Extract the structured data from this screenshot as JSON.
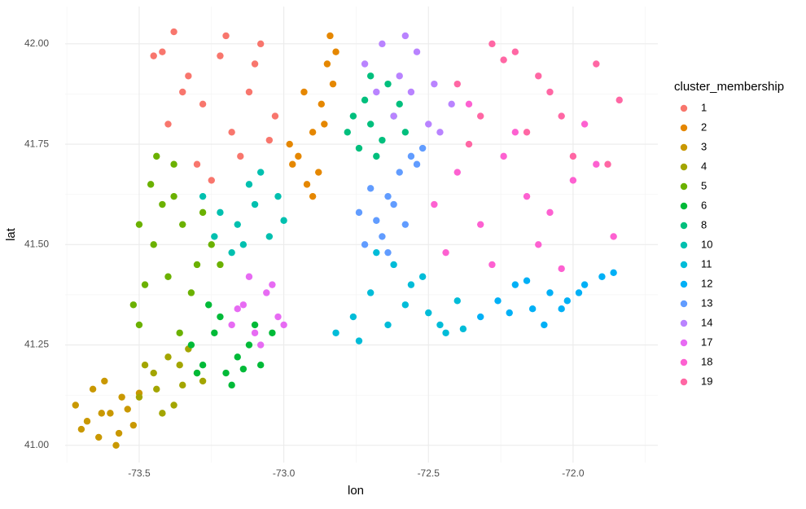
{
  "chart_data": {
    "type": "scatter",
    "xlabel": "lon",
    "ylabel": "lat",
    "legend_title": "cluster_membership",
    "legend_position": "right",
    "grid": true,
    "xlim": [
      -73.756,
      -71.707
    ],
    "ylim": [
      40.957,
      42.093
    ],
    "xticks": [
      -73.5,
      {
        "value": -73.0,
        "label": "-73.0"
      },
      -72.5,
      {
        "value": -72.0,
        "label": "-72.0"
      }
    ],
    "yticks": [
      {
        "value": 41.0,
        "label": "41.00"
      },
      41.25,
      {
        "value": 41.5,
        "label": "41.50"
      },
      41.75,
      {
        "value": 42.0,
        "label": "42.00"
      }
    ],
    "series": [
      {
        "name": "1",
        "color": "#F8766D",
        "x": [
          -73.42,
          -73.38,
          -73.33,
          -73.28,
          -73.22,
          -73.18,
          -73.12,
          -73.08,
          -73.03,
          -73.4,
          -73.3,
          -73.25,
          -73.15,
          -73.35,
          -73.1,
          -73.2,
          -73.45,
          -73.05
        ],
        "y": [
          41.98,
          42.03,
          41.92,
          41.85,
          41.97,
          41.78,
          41.88,
          42.0,
          41.82,
          41.8,
          41.7,
          41.66,
          41.72,
          41.88,
          41.95,
          42.02,
          41.97,
          41.76
        ]
      },
      {
        "name": "2",
        "color": "#E58700",
        "x": [
          -72.95,
          -72.9,
          -72.87,
          -72.83,
          -72.85,
          -72.92,
          -72.98,
          -72.88,
          -72.82,
          -72.93,
          -72.86,
          -72.9,
          -72.97,
          -72.84
        ],
        "y": [
          41.72,
          41.78,
          41.85,
          41.9,
          41.95,
          41.65,
          41.75,
          41.68,
          41.98,
          41.88,
          41.8,
          41.62,
          41.7,
          42.02
        ]
      },
      {
        "name": "3",
        "color": "#C99800",
        "x": [
          -73.72,
          -73.68,
          -73.64,
          -73.6,
          -73.56,
          -73.52,
          -73.66,
          -73.58,
          -73.62,
          -73.54,
          -73.7,
          -73.5,
          -73.63,
          -73.57
        ],
        "y": [
          41.1,
          41.06,
          41.02,
          41.08,
          41.12,
          41.05,
          41.14,
          41.0,
          41.16,
          41.09,
          41.04,
          41.13,
          41.08,
          41.03
        ]
      },
      {
        "name": "4",
        "color": "#A3A500",
        "x": [
          -73.5,
          -73.45,
          -73.4,
          -73.35,
          -73.3,
          -73.42,
          -73.48,
          -73.38,
          -73.33,
          -73.28,
          -73.44,
          -73.36
        ],
        "y": [
          41.12,
          41.18,
          41.22,
          41.15,
          41.18,
          41.08,
          41.2,
          41.1,
          41.24,
          41.16,
          41.14,
          41.2
        ]
      },
      {
        "name": "5",
        "color": "#6BB100",
        "x": [
          -73.5,
          -73.48,
          -73.45,
          -73.42,
          -73.38,
          -73.35,
          -73.3,
          -73.25,
          -73.52,
          -73.46,
          -73.4,
          -73.32,
          -73.28,
          -73.36,
          -73.44,
          -73.5,
          -73.22,
          -73.38
        ],
        "y": [
          41.3,
          41.4,
          41.5,
          41.6,
          41.7,
          41.55,
          41.45,
          41.5,
          41.35,
          41.65,
          41.42,
          41.38,
          41.58,
          41.28,
          41.72,
          41.55,
          41.45,
          41.62
        ]
      },
      {
        "name": "6",
        "color": "#00BA38",
        "x": [
          -73.32,
          -73.28,
          -73.24,
          -73.2,
          -73.16,
          -73.12,
          -73.08,
          -73.04,
          -73.26,
          -73.18,
          -73.1,
          -73.3,
          -73.14,
          -73.22
        ],
        "y": [
          41.25,
          41.2,
          41.28,
          41.18,
          41.22,
          41.25,
          41.2,
          41.28,
          41.35,
          41.15,
          41.3,
          41.18,
          41.19,
          41.32
        ]
      },
      {
        "name": "8",
        "color": "#00BF7D",
        "x": [
          -72.78,
          -72.74,
          -72.7,
          -72.66,
          -72.62,
          -72.58,
          -72.72,
          -72.68,
          -72.64,
          -72.76,
          -72.6,
          -72.7
        ],
        "y": [
          41.78,
          41.74,
          41.8,
          41.76,
          41.82,
          41.78,
          41.86,
          41.72,
          41.9,
          41.82,
          41.85,
          41.92
        ]
      },
      {
        "name": "10",
        "color": "#00C0AF",
        "x": [
          -73.28,
          -73.22,
          -73.16,
          -73.1,
          -73.05,
          -73.0,
          -73.18,
          -73.12,
          -73.08,
          -73.24,
          -73.02,
          -73.14
        ],
        "y": [
          41.62,
          41.58,
          41.55,
          41.6,
          41.52,
          41.56,
          41.48,
          41.65,
          41.68,
          41.52,
          41.62,
          41.5
        ]
      },
      {
        "name": "11",
        "color": "#00BCD8",
        "x": [
          -72.82,
          -72.76,
          -72.7,
          -72.64,
          -72.58,
          -72.52,
          -72.46,
          -72.4,
          -72.74,
          -72.62,
          -72.5,
          -72.44,
          -72.68,
          -72.56,
          -72.38
        ],
        "y": [
          41.28,
          41.32,
          41.38,
          41.3,
          41.35,
          41.42,
          41.3,
          41.36,
          41.26,
          41.45,
          41.33,
          41.28,
          41.48,
          41.4,
          41.29
        ]
      },
      {
        "name": "12",
        "color": "#00B0F6",
        "x": [
          -72.32,
          -72.26,
          -72.2,
          -72.14,
          -72.08,
          -72.02,
          -71.96,
          -71.9,
          -72.22,
          -72.1,
          -71.98,
          -72.16,
          -72.04,
          -71.86
        ],
        "y": [
          41.32,
          41.36,
          41.4,
          41.34,
          41.38,
          41.36,
          41.4,
          41.42,
          41.33,
          41.3,
          41.38,
          41.41,
          41.34,
          41.43
        ]
      },
      {
        "name": "13",
        "color": "#619CFF",
        "x": [
          -72.72,
          -72.68,
          -72.64,
          -72.6,
          -72.56,
          -72.52,
          -72.66,
          -72.62,
          -72.58,
          -72.7,
          -72.54,
          -72.74,
          -72.64
        ],
        "y": [
          41.5,
          41.56,
          41.62,
          41.68,
          41.72,
          41.74,
          41.52,
          41.6,
          41.55,
          41.64,
          41.7,
          41.58,
          41.48
        ]
      },
      {
        "name": "14",
        "color": "#B983FF",
        "x": [
          -72.72,
          -72.66,
          -72.6,
          -72.54,
          -72.48,
          -72.42,
          -72.62,
          -72.56,
          -72.5,
          -72.68,
          -72.58,
          -72.46
        ],
        "y": [
          41.95,
          42.0,
          41.92,
          41.98,
          41.9,
          41.85,
          41.82,
          41.88,
          41.8,
          41.88,
          42.02,
          41.78
        ]
      },
      {
        "name": "17",
        "color": "#E76BF3",
        "x": [
          -73.18,
          -73.14,
          -73.1,
          -73.06,
          -73.02,
          -73.12,
          -73.08,
          -73.04,
          -73.16,
          -73.0
        ],
        "y": [
          41.3,
          41.35,
          41.28,
          41.38,
          41.32,
          41.42,
          41.25,
          41.4,
          41.34,
          41.3
        ]
      },
      {
        "name": "18",
        "color": "#FD61D1",
        "x": [
          -72.48,
          -72.4,
          -72.32,
          -72.24,
          -72.16,
          -72.08,
          -72.0,
          -71.92,
          -71.86,
          -72.44,
          -72.28,
          -72.12,
          -71.96,
          -72.36,
          -72.2,
          -72.04
        ],
        "y": [
          41.6,
          41.68,
          41.55,
          41.72,
          41.62,
          41.58,
          41.66,
          41.7,
          41.52,
          41.48,
          41.45,
          41.5,
          41.8,
          41.85,
          41.78,
          41.44
        ]
      },
      {
        "name": "19",
        "color": "#FF67A4",
        "x": [
          -72.4,
          -72.32,
          -72.24,
          -72.16,
          -72.08,
          -72.0,
          -71.92,
          -71.84,
          -72.36,
          -72.2,
          -72.04,
          -71.88,
          -72.28,
          -72.12
        ],
        "y": [
          41.9,
          41.82,
          41.96,
          41.78,
          41.88,
          41.72,
          41.95,
          41.86,
          41.75,
          41.98,
          41.82,
          41.7,
          42.0,
          41.92
        ]
      }
    ]
  }
}
